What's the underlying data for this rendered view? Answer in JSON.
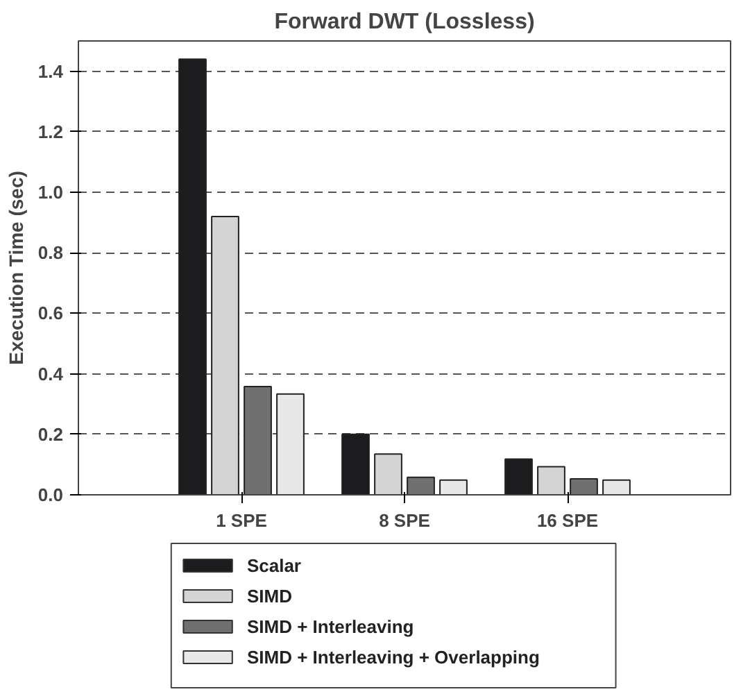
{
  "chart_data": {
    "type": "bar",
    "title": "Forward DWT (Lossless)",
    "ylabel": "Execution Time (sec)",
    "categories": [
      "1 SPE",
      "8 SPE",
      "16 SPE"
    ],
    "series": [
      {
        "name": "Scalar",
        "color": "#1c1b1d",
        "values": [
          1.44,
          0.2,
          0.118
        ]
      },
      {
        "name": "SIMD",
        "color": "#d4d4d4",
        "values": [
          0.92,
          0.135,
          0.093
        ]
      },
      {
        "name": "SIMD + Interleaving",
        "color": "#707070",
        "values": [
          0.358,
          0.058,
          0.053
        ]
      },
      {
        "name": "SIMD + Interleaving + Overlapping",
        "color": "#e8e8e8",
        "values": [
          0.333,
          0.049,
          0.049
        ]
      }
    ],
    "ylim": [
      0,
      1.5
    ],
    "yticks": [
      {
        "value": 0,
        "label": "0.0"
      },
      {
        "value": 0.2,
        "label": "0.2"
      },
      {
        "value": 0.4,
        "label": "0.4"
      },
      {
        "value": 0.6,
        "label": "0.6"
      },
      {
        "value": 0.8,
        "label": "0.8"
      },
      {
        "value": 1.0,
        "label": "1.0"
      },
      {
        "value": 1.2,
        "label": "1.2"
      },
      {
        "value": 1.4,
        "label": "1.4"
      }
    ],
    "grid": "y",
    "legend": "bottom"
  }
}
